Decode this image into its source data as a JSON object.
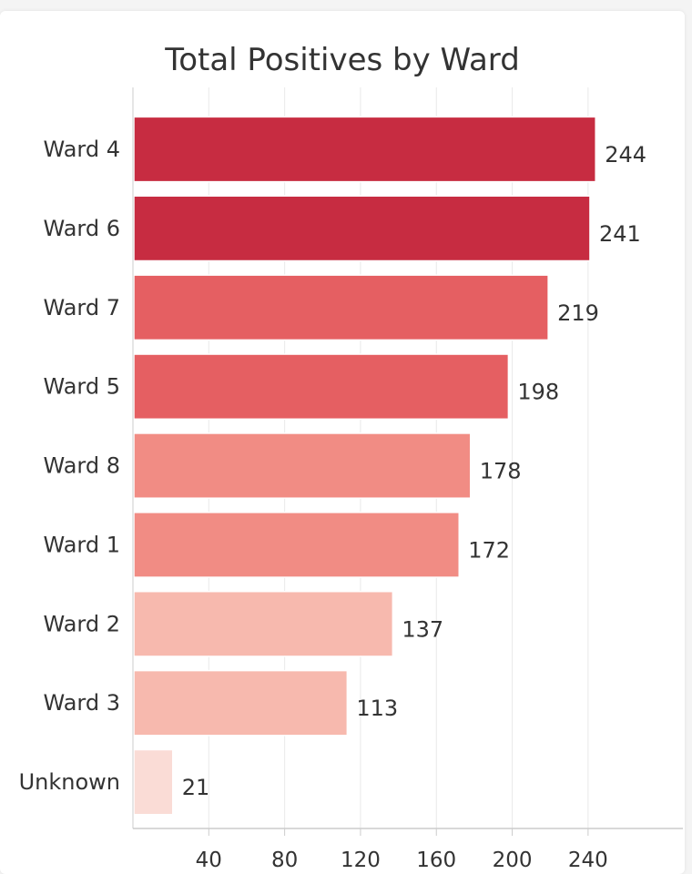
{
  "chart_data": {
    "type": "bar",
    "orientation": "horizontal",
    "title": "Total Positives by Ward",
    "xlabel": "",
    "ylabel": "",
    "categories": [
      "Ward 4",
      "Ward 6",
      "Ward 7",
      "Ward 5",
      "Ward 8",
      "Ward 1",
      "Ward 2",
      "Ward 3",
      "Unknown"
    ],
    "values": [
      244,
      241,
      219,
      198,
      178,
      172,
      137,
      113,
      21
    ],
    "colors": [
      "#c72c41",
      "#c72c41",
      "#e55f62",
      "#e55f62",
      "#f18c84",
      "#f18c84",
      "#f7b9ae",
      "#f7b9ae",
      "#fadcd6"
    ],
    "xlim": [
      0,
      290
    ],
    "xticks": [
      40,
      80,
      120,
      160,
      200,
      240
    ],
    "grid": true,
    "legend": "none"
  }
}
